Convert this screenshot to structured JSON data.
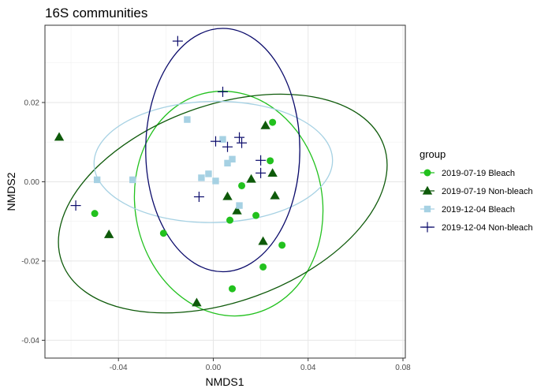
{
  "chart_data": {
    "type": "scatter",
    "title": "16S communities",
    "xlabel": "NMDS1",
    "ylabel": "NMDS2",
    "xlim": [
      -0.071,
      0.081
    ],
    "ylim": [
      -0.0445,
      0.0395
    ],
    "x_ticks": [
      -0.04,
      0.0,
      0.04,
      0.08
    ],
    "x_tick_labels": [
      "-0.04",
      "0.00",
      "0.04",
      "0.08"
    ],
    "y_ticks": [
      -0.04,
      -0.02,
      0.0,
      0.02
    ],
    "y_tick_labels": [
      "-0.04",
      "-0.02",
      "0.00",
      "0.02"
    ],
    "grid": true,
    "legend_title": "group",
    "legend_position": "right",
    "series": [
      {
        "name": "2019-07-19 Bleach",
        "marker": "circle",
        "color": "#22c11e",
        "x": [
          -0.05,
          -0.021,
          0.007,
          0.008,
          0.012,
          0.018,
          0.021,
          0.024,
          0.025,
          0.029
        ],
        "y": [
          -0.008,
          -0.013,
          -0.0097,
          -0.027,
          -0.001,
          -0.0085,
          -0.0215,
          0.0053,
          0.015,
          -0.016
        ],
        "ellipse": {
          "cx": 0.0065,
          "cy": -0.0055,
          "rx": 0.0395,
          "ry": 0.0285,
          "angle_deg": -10
        }
      },
      {
        "name": "2019-07-19 Non-bleach",
        "marker": "triangle",
        "color": "#0e5a0a",
        "x": [
          -0.065,
          -0.044,
          -0.007,
          0.006,
          0.01,
          0.016,
          0.021,
          0.022,
          0.025,
          0.026
        ],
        "y": [
          0.0113,
          -0.0133,
          -0.0305,
          -0.0037,
          -0.0073,
          0.0007,
          -0.015,
          0.0142,
          0.0022,
          -0.0035
        ],
        "ellipse": {
          "cx": 0.004,
          "cy": -0.0055,
          "rx": 0.0722,
          "ry": 0.0248,
          "angle_deg": -20
        }
      },
      {
        "name": "2019-12-04 Bleach",
        "marker": "square",
        "color": "#a6d1e3",
        "x": [
          -0.049,
          -0.034,
          -0.011,
          -0.005,
          -0.002,
          0.001,
          0.004,
          0.006,
          0.008,
          0.011
        ],
        "y": [
          0.0005,
          0.0005,
          0.0157,
          0.001,
          0.002,
          0.0002,
          0.0107,
          0.0047,
          0.0057,
          -0.006
        ],
        "ellipse": {
          "cx": 0.0,
          "cy": 0.005,
          "rx": 0.0503,
          "ry": 0.0153,
          "angle_deg": -1
        }
      },
      {
        "name": "2019-12-04 Non-bleach",
        "marker": "plus",
        "color": "#0b0b6b",
        "x": [
          -0.058,
          -0.015,
          -0.006,
          0.001,
          0.004,
          0.006,
          0.011,
          0.012,
          0.02,
          0.02
        ],
        "y": [
          -0.006,
          0.0355,
          -0.0038,
          0.0102,
          0.0227,
          0.0088,
          0.0112,
          0.0098,
          0.0022,
          0.0054
        ],
        "ellipse": {
          "cx": 0.004,
          "cy": 0.008,
          "rx": 0.0325,
          "ry": 0.0307,
          "angle_deg": 0
        }
      }
    ]
  }
}
